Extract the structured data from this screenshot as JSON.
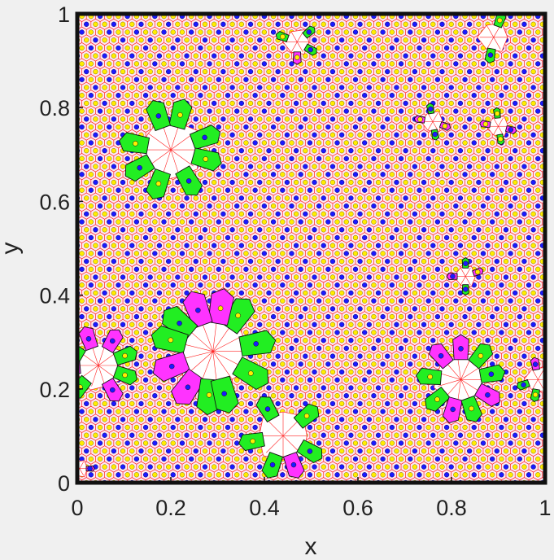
{
  "chart_data": {
    "type": "scatter",
    "title": "",
    "xlabel": "x",
    "ylabel": "y",
    "xlim": [
      0,
      1
    ],
    "ylim": [
      0,
      1
    ],
    "x_ticks": [
      "0",
      "0.2",
      "0.4",
      "0.6",
      "0.8",
      "1"
    ],
    "y_ticks": [
      "0",
      "0.2",
      "0.4",
      "0.6",
      "0.8",
      "1"
    ],
    "grid": false,
    "legend": "none",
    "background_pattern": {
      "description": "hexagonal Voronoi lattice",
      "cell_size": 0.0195,
      "edge_color": "#ff2020",
      "fill_color": "#ffe8f2",
      "site_colors": [
        "#1a1aff",
        "#ffee00"
      ],
      "blue_site_every": 3
    },
    "defect_clusters": [
      {
        "name": "cluster-top-middle",
        "center": [
          0.47,
          0.94
        ],
        "radius": 0.03,
        "petals": [
          {
            "angle": 40,
            "color": "#22ee22",
            "dot": "#1a1aff"
          },
          {
            "angle": 160,
            "color": "#22ee22",
            "dot": "#ffee00"
          },
          {
            "angle": 270,
            "color": "#ff33ff",
            "dot": "#ffee00"
          },
          {
            "angle": 330,
            "color": "#22ee22",
            "dot": "#1a1aff"
          }
        ]
      },
      {
        "name": "cluster-top-right",
        "center": [
          0.89,
          0.95
        ],
        "radius": 0.035,
        "petals": [
          {
            "angle": 70,
            "color": "#22ee22",
            "dot": "#ffee00"
          },
          {
            "angle": 260,
            "color": "#22ee22",
            "dot": "#1a1aff"
          }
        ]
      },
      {
        "name": "cluster-upper-left",
        "center": [
          0.2,
          0.71
        ],
        "radius": 0.07,
        "petals": [
          {
            "angle": 20,
            "color": "#22ee22",
            "dot": "#1a1aff"
          },
          {
            "angle": 75,
            "color": "#22ee22",
            "dot": "#ffee00"
          },
          {
            "angle": 110,
            "color": "#22ee22",
            "dot": "#1a1aff"
          },
          {
            "angle": 170,
            "color": "#22ee22",
            "dot": "#ffee00"
          },
          {
            "angle": 210,
            "color": "#22ee22",
            "dot": "#1a1aff"
          },
          {
            "angle": 250,
            "color": "#22ee22",
            "dot": "#ffee00"
          },
          {
            "angle": 300,
            "color": "#22ee22",
            "dot": "#1a1aff"
          },
          {
            "angle": 345,
            "color": "#22ee22",
            "dot": "#ffee00"
          }
        ]
      },
      {
        "name": "cluster-right-upper-a",
        "center": [
          0.76,
          0.77
        ],
        "radius": 0.025,
        "petals": [
          {
            "angle": 100,
            "color": "#22ee22",
            "dot": "#1a1aff"
          },
          {
            "angle": 170,
            "color": "#ff33ff",
            "dot": "#ffee00"
          },
          {
            "angle": 280,
            "color": "#22ee22",
            "dot": "#1a1aff"
          },
          {
            "angle": 340,
            "color": "#ff33ff",
            "dot": "#ffee00"
          }
        ]
      },
      {
        "name": "cluster-right-upper-b",
        "center": [
          0.9,
          0.76
        ],
        "radius": 0.025,
        "petals": [
          {
            "angle": 95,
            "color": "#22ee22",
            "dot": "#ffee00"
          },
          {
            "angle": 170,
            "color": "#ff33ff",
            "dot": "#ffee00"
          },
          {
            "angle": 280,
            "color": "#22ee22",
            "dot": "#ffee00"
          },
          {
            "angle": 345,
            "color": "#ff33ff",
            "dot": "#1a1aff"
          }
        ]
      },
      {
        "name": "cluster-right-middle",
        "center": [
          0.83,
          0.44
        ],
        "radius": 0.025,
        "petals": [
          {
            "angle": 90,
            "color": "#22ee22",
            "dot": "#1a1aff"
          },
          {
            "angle": 180,
            "color": "#ff33ff",
            "dot": "#1a1aff"
          },
          {
            "angle": 270,
            "color": "#22ee22",
            "dot": "#1a1aff"
          },
          {
            "angle": 20,
            "color": "#ff33ff",
            "dot": "#ffee00"
          }
        ]
      },
      {
        "name": "cluster-lower-left-large",
        "center": [
          0.29,
          0.28
        ],
        "radius": 0.085,
        "petals": [
          {
            "angle": 10,
            "color": "#22ee22",
            "dot": "#1a1aff"
          },
          {
            "angle": 55,
            "color": "#22ee22",
            "dot": "#ffee00"
          },
          {
            "angle": 80,
            "color": "#ff33ff",
            "dot": "#ffee00"
          },
          {
            "angle": 110,
            "color": "#ff33ff",
            "dot": "#1a1aff"
          },
          {
            "angle": 140,
            "color": "#22ee22",
            "dot": "#1a1aff"
          },
          {
            "angle": 165,
            "color": "#22ee22",
            "dot": "#ffee00"
          },
          {
            "angle": 200,
            "color": "#ff33ff",
            "dot": "#1a1aff"
          },
          {
            "angle": 235,
            "color": "#ff33ff",
            "dot": "#1a1aff"
          },
          {
            "angle": 265,
            "color": "#22ee22",
            "dot": "#ffee00"
          },
          {
            "angle": 285,
            "color": "#22ee22",
            "dot": "#1a1aff"
          },
          {
            "angle": 330,
            "color": "#22ee22",
            "dot": "#ffee00"
          }
        ]
      },
      {
        "name": "cluster-left-edge",
        "center": [
          0.045,
          0.25
        ],
        "radius": 0.055,
        "petals": [
          {
            "angle": 20,
            "color": "#22ee22",
            "dot": "#ffee00"
          },
          {
            "angle": 60,
            "color": "#ff33ff",
            "dot": "#1a1aff"
          },
          {
            "angle": 110,
            "color": "#ff33ff",
            "dot": "#1a1aff"
          },
          {
            "angle": 150,
            "color": "#22ee22",
            "dot": "#1a1aff"
          },
          {
            "angle": 185,
            "color": "#ff33ff",
            "dot": "#1a1aff"
          },
          {
            "angle": 230,
            "color": "#22ee22",
            "dot": "#ffee00"
          },
          {
            "angle": 300,
            "color": "#ff33ff",
            "dot": "#1a1aff"
          },
          {
            "angle": 340,
            "color": "#22ee22",
            "dot": "#ffee00"
          }
        ]
      },
      {
        "name": "cluster-lower-middle",
        "center": [
          0.44,
          0.1
        ],
        "radius": 0.06,
        "petals": [
          {
            "angle": 40,
            "color": "#22ee22",
            "dot": "#ffee00"
          },
          {
            "angle": 120,
            "color": "#22ee22",
            "dot": "#1a1aff"
          },
          {
            "angle": 190,
            "color": "#22ee22",
            "dot": "#ffee00"
          },
          {
            "angle": 250,
            "color": "#22ee22",
            "dot": "#1a1aff"
          },
          {
            "angle": 290,
            "color": "#ff33ff",
            "dot": "#1a1aff"
          },
          {
            "angle": 330,
            "color": "#22ee22",
            "dot": "#1a1aff"
          }
        ]
      },
      {
        "name": "cluster-lower-right",
        "center": [
          0.82,
          0.22
        ],
        "radius": 0.06,
        "petals": [
          {
            "angle": 10,
            "color": "#22ee22",
            "dot": "#1a1aff"
          },
          {
            "angle": 50,
            "color": "#22ee22",
            "dot": "#ffee00"
          },
          {
            "angle": 90,
            "color": "#ff33ff",
            "dot": "#1a1aff"
          },
          {
            "angle": 130,
            "color": "#ff33ff",
            "dot": "#1a1aff"
          },
          {
            "angle": 175,
            "color": "#22ee22",
            "dot": "#ffee00"
          },
          {
            "angle": 220,
            "color": "#22ee22",
            "dot": "#ffee00"
          },
          {
            "angle": 255,
            "color": "#ff33ff",
            "dot": "#1a1aff"
          },
          {
            "angle": 290,
            "color": "#22ee22",
            "dot": "#ffee00"
          },
          {
            "angle": 330,
            "color": "#ff33ff",
            "dot": "#1a1aff"
          }
        ]
      },
      {
        "name": "cluster-right-edge",
        "center": [
          0.985,
          0.22
        ],
        "radius": 0.03,
        "petals": [
          {
            "angle": 100,
            "color": "#ff33ff",
            "dot": "#1a1aff"
          },
          {
            "angle": 200,
            "color": "#22ee22",
            "dot": "#1a1aff"
          },
          {
            "angle": 260,
            "color": "#22ee22",
            "dot": "#ffee00"
          }
        ]
      },
      {
        "name": "cluster-bottom-left-corner",
        "center": [
          0.005,
          0.03
        ],
        "radius": 0.02,
        "petals": [
          {
            "angle": 0,
            "color": "#ff33ff",
            "dot": "#1a1aff"
          }
        ]
      }
    ]
  }
}
